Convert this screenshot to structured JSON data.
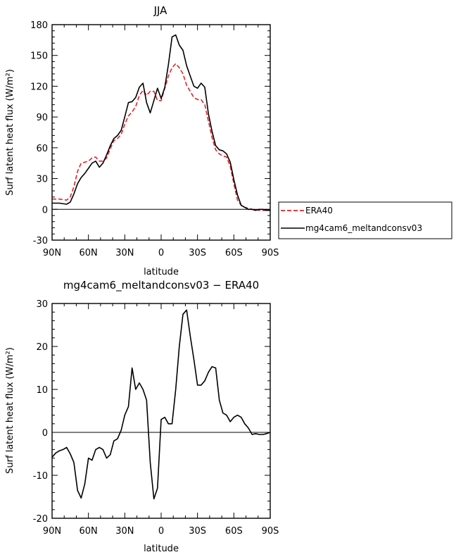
{
  "chart_data": [
    {
      "type": "line",
      "title": "JJA",
      "xlabel": "latitude",
      "ylabel": "Surf latent heat flux (W/m²)",
      "xlim": [
        90,
        -90
      ],
      "ylim": [
        -30,
        180
      ],
      "x_tick_values": [
        90,
        60,
        30,
        0,
        -30,
        -60,
        -90
      ],
      "x_tick_labels": [
        "90N",
        "60N",
        "30N",
        "0",
        "30S",
        "60S",
        "90S"
      ],
      "y_ticks": [
        -30,
        0,
        30,
        60,
        90,
        120,
        150,
        180
      ],
      "legend": "right",
      "series": [
        {
          "name": "ERA40",
          "color": "#e8202a",
          "dash": "dashed",
          "x": [
            90,
            84,
            78,
            75,
            72,
            69,
            66,
            63,
            60,
            57,
            54,
            51,
            48,
            45,
            42,
            39,
            36,
            33,
            30,
            27,
            24,
            21,
            18,
            15,
            12,
            9,
            6,
            3,
            0,
            -3,
            -6,
            -9,
            -12,
            -15,
            -18,
            -21,
            -24,
            -27,
            -30,
            -33,
            -36,
            -39,
            -42,
            -45,
            -48,
            -51,
            -54,
            -57,
            -60,
            -63,
            -66,
            -69,
            -72,
            -75,
            -78,
            -81,
            -84,
            -87,
            -90
          ],
          "y": [
            10,
            10,
            9,
            12,
            22,
            37,
            45,
            46,
            47,
            50,
            51,
            47,
            47,
            50,
            59,
            67,
            69,
            73,
            83,
            91,
            95,
            100,
            111,
            116,
            111,
            115,
            115,
            106,
            106,
            118,
            130,
            138,
            142,
            138,
            132,
            121,
            115,
            109,
            107,
            107,
            102,
            86,
            70,
            58,
            54,
            52,
            51,
            42,
            25,
            9,
            4,
            2,
            1,
            0,
            0,
            -1,
            -1,
            -1,
            -1
          ]
        },
        {
          "name": "mg4cam6_meltandconsv03",
          "color": "#000000",
          "dash": "solid",
          "x": [
            90,
            84,
            78,
            75,
            72,
            69,
            66,
            63,
            60,
            57,
            54,
            51,
            48,
            45,
            42,
            39,
            36,
            33,
            30,
            27,
            24,
            21,
            18,
            15,
            12,
            9,
            6,
            3,
            0,
            -3,
            -6,
            -9,
            -12,
            -15,
            -18,
            -21,
            -24,
            -27,
            -30,
            -33,
            -36,
            -39,
            -42,
            -45,
            -48,
            -51,
            -54,
            -57,
            -60,
            -63,
            -66,
            -69,
            -72,
            -75,
            -78,
            -81,
            -84,
            -87,
            -90
          ],
          "y": [
            6,
            6,
            5,
            7,
            15,
            25,
            31,
            35,
            40,
            45,
            47,
            41,
            45,
            53,
            62,
            69,
            72,
            77,
            90,
            104,
            105,
            109,
            119,
            123,
            104,
            94,
            106,
            118,
            108,
            119,
            141,
            168,
            170,
            160,
            155,
            140,
            130,
            120,
            118,
            123,
            119,
            93,
            76,
            62,
            58,
            57,
            54,
            46,
            29,
            14,
            4,
            2,
            0,
            0,
            -1,
            0,
            0,
            -1,
            -1
          ]
        }
      ]
    },
    {
      "type": "line",
      "title": "mg4cam6_meltandconsv03 − ERA40",
      "xlabel": "latitude",
      "ylabel": "Surf latent heat flux (W/m²)",
      "xlim": [
        90,
        -90
      ],
      "ylim": [
        -20,
        30
      ],
      "x_tick_values": [
        90,
        60,
        30,
        0,
        -30,
        -60,
        -90
      ],
      "x_tick_labels": [
        "90N",
        "60N",
        "30N",
        "0",
        "30S",
        "60S",
        "90S"
      ],
      "y_ticks": [
        -20,
        -10,
        0,
        10,
        20,
        30
      ],
      "series": [
        {
          "color": "#000000",
          "x": [
            90,
            87,
            84,
            81,
            78,
            75,
            72,
            69,
            66,
            63,
            60,
            57,
            54,
            51,
            48,
            45,
            42,
            39,
            36,
            33,
            30,
            27,
            24,
            21,
            18,
            15,
            12,
            9,
            6,
            3,
            0,
            -3,
            -6,
            -9,
            -12,
            -15,
            -18,
            -21,
            -24,
            -27,
            -30,
            -33,
            -36,
            -39,
            -42,
            -45,
            -48,
            -51,
            -54,
            -57,
            -60,
            -63,
            -66,
            -69,
            -72,
            -75,
            -78,
            -81,
            -84,
            -87,
            -90
          ],
          "y": [
            -5.8,
            -4.8,
            -4.3,
            -4.0,
            -3.5,
            -5.0,
            -7.0,
            -13.5,
            -15.3,
            -12.0,
            -6.0,
            -6.5,
            -4.0,
            -3.5,
            -4.0,
            -6.0,
            -5.2,
            -2.0,
            -1.5,
            0.5,
            4.0,
            6.0,
            15.0,
            10.0,
            11.5,
            10.0,
            7.5,
            -7.0,
            -15.5,
            -13.0,
            3.0,
            3.5,
            2.0,
            2.0,
            10.0,
            20.0,
            27.5,
            28.5,
            22.5,
            17.0,
            11.0,
            11.0,
            12.0,
            14.0,
            15.3,
            15.0,
            7.5,
            4.5,
            4.0,
            2.5,
            3.5,
            4.0,
            3.5,
            2.0,
            1.0,
            -0.5,
            -0.3,
            -0.5,
            -0.5,
            -0.3,
            0.0
          ]
        }
      ]
    }
  ]
}
